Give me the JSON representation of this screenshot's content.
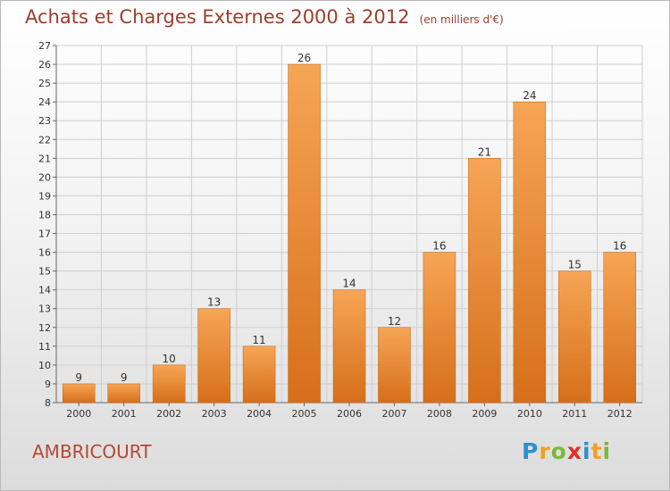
{
  "title": "Achats et Charges Externes 2000 à 2012",
  "unit_label": "(en milliers d'€)",
  "commune": "AMBRICOURT",
  "logo": {
    "letters": [
      "P",
      "r",
      "o",
      "x",
      "i",
      "t",
      "i"
    ],
    "colors": [
      "#2e8fcf",
      "#f0a020",
      "#7cb93a",
      "#e0302a",
      "#2e8fcf",
      "#f0a020",
      "#7cb93a"
    ]
  },
  "chart_data": {
    "type": "bar",
    "title": "Achats et Charges Externes 2000 à 2012",
    "categories": [
      "2000",
      "2001",
      "2002",
      "2003",
      "2004",
      "2005",
      "2006",
      "2007",
      "2008",
      "2009",
      "2010",
      "2011",
      "2012"
    ],
    "values": [
      9,
      9,
      10,
      13,
      11,
      26,
      14,
      12,
      16,
      21,
      24,
      15,
      16
    ],
    "ylim": [
      8,
      27
    ],
    "yticks": [
      8,
      9,
      10,
      11,
      12,
      13,
      14,
      15,
      16,
      17,
      18,
      19,
      20,
      21,
      22,
      23,
      24,
      25,
      26,
      27
    ],
    "grid": true,
    "colors": {
      "bar_light": "#f6a556",
      "bar_dark": "#d66f1a",
      "grid": "#cfcfcf",
      "axis": "#666666"
    }
  }
}
